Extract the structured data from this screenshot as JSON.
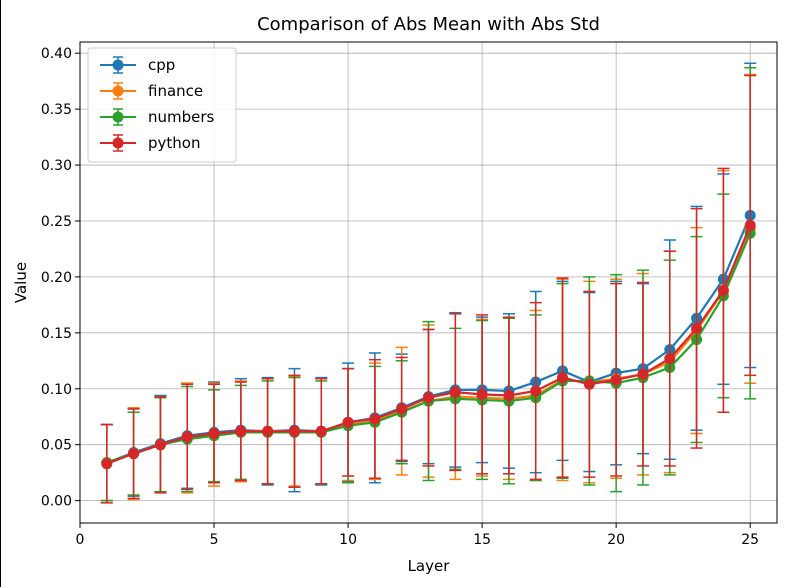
{
  "chart_data": {
    "type": "line",
    "title": "Comparison of Abs Mean with Abs Std",
    "xlabel": "Layer",
    "ylabel": "Value",
    "xlim": [
      0,
      26
    ],
    "ylim": [
      -0.02,
      0.41
    ],
    "grid": true,
    "legend_position": "top-left",
    "xticks": [
      0,
      5,
      10,
      15,
      20,
      25
    ],
    "yticks": [
      0.0,
      0.05,
      0.1,
      0.15,
      0.2,
      0.25,
      0.3,
      0.35,
      0.4
    ],
    "x": [
      1,
      2,
      3,
      4,
      5,
      6,
      7,
      8,
      9,
      10,
      11,
      12,
      13,
      14,
      15,
      16,
      17,
      18,
      19,
      20,
      21,
      22,
      23,
      24,
      25
    ],
    "series": [
      {
        "name": "cpp",
        "color": "#1f77b4",
        "values": [
          0.034,
          0.043,
          0.051,
          0.058,
          0.061,
          0.063,
          0.062,
          0.063,
          0.062,
          0.07,
          0.074,
          0.083,
          0.093,
          0.099,
          0.099,
          0.098,
          0.106,
          0.116,
          0.106,
          0.114,
          0.118,
          0.135,
          0.163,
          0.198,
          0.255
        ],
        "err": [
          0.034,
          0.039,
          0.043,
          0.047,
          0.045,
          0.046,
          0.048,
          0.055,
          0.048,
          0.053,
          0.058,
          0.048,
          0.06,
          0.069,
          0.065,
          0.069,
          0.081,
          0.08,
          0.08,
          0.082,
          0.076,
          0.098,
          0.1,
          0.094,
          0.136
        ]
      },
      {
        "name": "finance",
        "color": "#ff7f0e",
        "values": [
          0.034,
          0.042,
          0.05,
          0.056,
          0.059,
          0.062,
          0.062,
          0.062,
          0.062,
          0.068,
          0.071,
          0.08,
          0.089,
          0.093,
          0.092,
          0.091,
          0.094,
          0.108,
          0.106,
          0.109,
          0.113,
          0.124,
          0.152,
          0.187,
          0.243
        ],
        "err": [
          0.034,
          0.041,
          0.043,
          0.049,
          0.046,
          0.045,
          0.047,
          0.049,
          0.047,
          0.05,
          0.052,
          0.057,
          0.068,
          0.074,
          0.07,
          0.072,
          0.076,
          0.09,
          0.09,
          0.089,
          0.09,
          0.099,
          0.092,
          0.108,
          0.138
        ]
      },
      {
        "name": "numbers",
        "color": "#2ca02c",
        "values": [
          0.034,
          0.042,
          0.05,
          0.055,
          0.058,
          0.061,
          0.061,
          0.061,
          0.061,
          0.067,
          0.07,
          0.079,
          0.089,
          0.091,
          0.09,
          0.089,
          0.092,
          0.107,
          0.107,
          0.105,
          0.11,
          0.119,
          0.144,
          0.183,
          0.239
        ],
        "err": [
          0.034,
          0.037,
          0.042,
          0.047,
          0.041,
          0.042,
          0.046,
          0.049,
          0.046,
          0.051,
          0.05,
          0.046,
          0.071,
          0.063,
          0.071,
          0.074,
          0.074,
          0.087,
          0.093,
          0.097,
          0.096,
          0.096,
          0.092,
          0.091,
          0.148
        ]
      },
      {
        "name": "python",
        "color": "#d62728",
        "values": [
          0.033,
          0.042,
          0.05,
          0.057,
          0.06,
          0.062,
          0.062,
          0.062,
          0.062,
          0.07,
          0.073,
          0.082,
          0.092,
          0.097,
          0.095,
          0.094,
          0.098,
          0.11,
          0.104,
          0.108,
          0.113,
          0.127,
          0.154,
          0.188,
          0.246
        ],
        "err": [
          0.035,
          0.04,
          0.043,
          0.047,
          0.044,
          0.044,
          0.047,
          0.05,
          0.047,
          0.048,
          0.053,
          0.046,
          0.061,
          0.07,
          0.071,
          0.07,
          0.079,
          0.089,
          0.083,
          0.086,
          0.082,
          0.096,
          0.107,
          0.109,
          0.134
        ]
      }
    ]
  }
}
